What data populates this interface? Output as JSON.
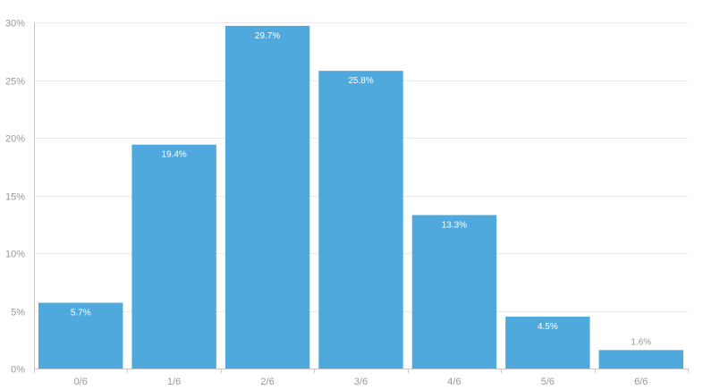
{
  "chart_data": {
    "type": "bar",
    "title": "",
    "xlabel": "",
    "ylabel": "",
    "categories": [
      "0/6",
      "1/6",
      "2/6",
      "3/6",
      "4/6",
      "5/6",
      "6/6"
    ],
    "values": [
      5.7,
      19.4,
      29.7,
      25.8,
      13.3,
      4.5,
      1.6
    ],
    "value_labels": [
      "5.7%",
      "19.4%",
      "29.7%",
      "25.8%",
      "13.3%",
      "4.5%",
      "1.6%"
    ],
    "y_ticks": [
      0,
      5,
      10,
      15,
      20,
      25,
      30
    ],
    "y_tick_labels": [
      "0%",
      "5%",
      "10%",
      "15%",
      "20%",
      "25%",
      "30%"
    ],
    "ylim": [
      0,
      30
    ],
    "grid": true,
    "legend": "none",
    "colors": {
      "bar": "#4fa9dd",
      "label_inside": "#ffffff",
      "label_outside": "#999999"
    }
  }
}
